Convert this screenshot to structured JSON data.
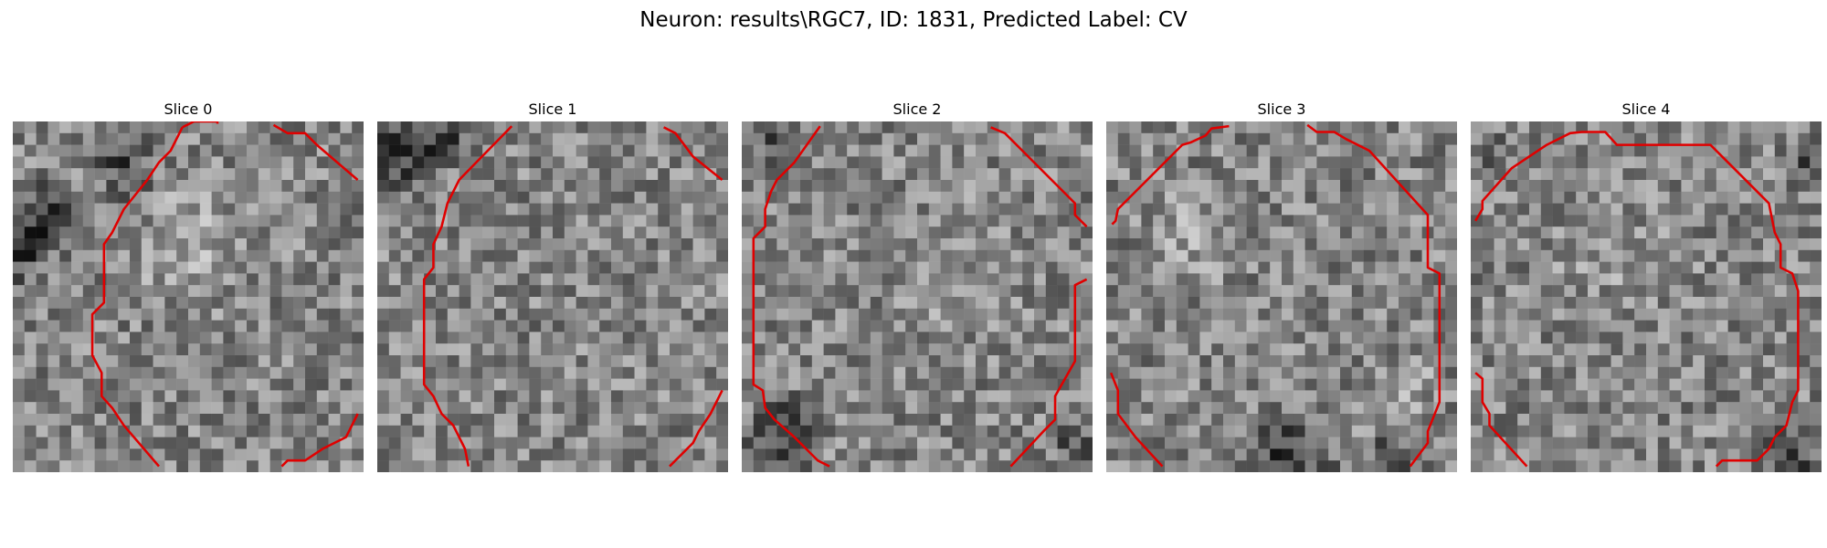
{
  "figure": {
    "suptitle": "Neuron: results\\RGC7, ID: 1831, Predicted Label: CV"
  },
  "slices": [
    {
      "title": "Slice 0"
    },
    {
      "title": "Slice 1"
    },
    {
      "title": "Slice 2"
    },
    {
      "title": "Slice 3"
    },
    {
      "title": "Slice 4"
    }
  ],
  "colors": {
    "contour": "#e00000",
    "background": "#ffffff"
  }
}
